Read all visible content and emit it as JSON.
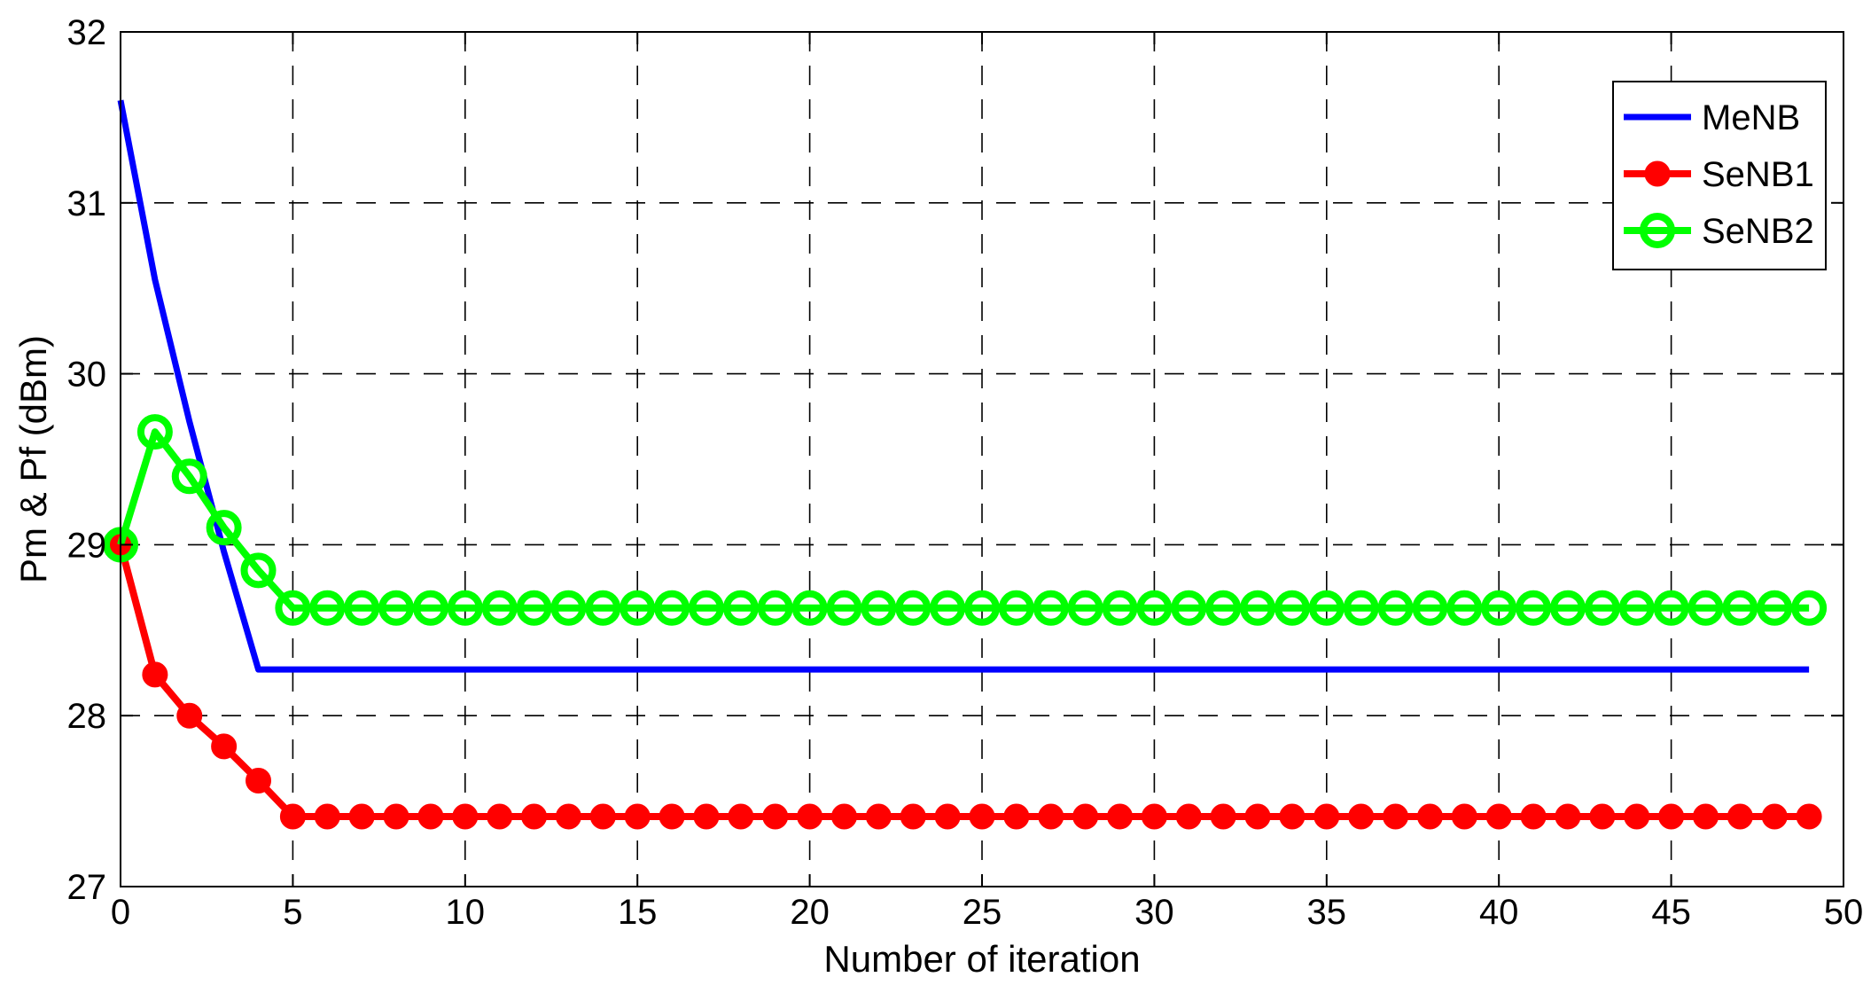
{
  "chart_data": {
    "type": "line",
    "xlabel": "Number of iteration",
    "ylabel": "Pm & Pf (dBm)",
    "xlim": [
      0,
      50
    ],
    "ylim": [
      27,
      32
    ],
    "xticks": [
      0,
      5,
      10,
      15,
      20,
      25,
      30,
      35,
      40,
      45,
      50
    ],
    "yticks": [
      27,
      28,
      29,
      30,
      31,
      32
    ],
    "grid": true,
    "legend_position": "top-right",
    "series": [
      {
        "name": "MeNB",
        "color": "#0000ff",
        "marker": "none",
        "x": [
          0,
          1,
          2,
          3,
          4,
          49
        ],
        "y": [
          31.6,
          30.55,
          29.72,
          28.96,
          28.27,
          28.27
        ]
      },
      {
        "name": "SeNB1",
        "color": "#ff0000",
        "marker": "filled-circle",
        "x": [
          0,
          1,
          2,
          3,
          4,
          5,
          6,
          7,
          8,
          9,
          10,
          11,
          12,
          13,
          14,
          15,
          16,
          17,
          18,
          19,
          20,
          21,
          22,
          23,
          24,
          25,
          26,
          27,
          28,
          29,
          30,
          31,
          32,
          33,
          34,
          35,
          36,
          37,
          38,
          39,
          40,
          41,
          42,
          43,
          44,
          45,
          46,
          47,
          48,
          49
        ],
        "y": [
          29.0,
          28.24,
          28.0,
          27.82,
          27.62,
          27.41,
          27.41,
          27.41,
          27.41,
          27.41,
          27.41,
          27.41,
          27.41,
          27.41,
          27.41,
          27.41,
          27.41,
          27.41,
          27.41,
          27.41,
          27.41,
          27.41,
          27.41,
          27.41,
          27.41,
          27.41,
          27.41,
          27.41,
          27.41,
          27.41,
          27.41,
          27.41,
          27.41,
          27.41,
          27.41,
          27.41,
          27.41,
          27.41,
          27.41,
          27.41,
          27.41,
          27.41,
          27.41,
          27.41,
          27.41,
          27.41,
          27.41,
          27.41,
          27.41,
          27.41
        ]
      },
      {
        "name": "SeNB2",
        "color": "#00ff00",
        "marker": "open-circle",
        "x": [
          0,
          1,
          2,
          3,
          4,
          5,
          6,
          7,
          8,
          9,
          10,
          11,
          12,
          13,
          14,
          15,
          16,
          17,
          18,
          19,
          20,
          21,
          22,
          23,
          24,
          25,
          26,
          27,
          28,
          29,
          30,
          31,
          32,
          33,
          34,
          35,
          36,
          37,
          38,
          39,
          40,
          41,
          42,
          43,
          44,
          45,
          46,
          47,
          48,
          49
        ],
        "y": [
          29.0,
          29.66,
          29.4,
          29.1,
          28.85,
          28.63,
          28.63,
          28.63,
          28.63,
          28.63,
          28.63,
          28.63,
          28.63,
          28.63,
          28.63,
          28.63,
          28.63,
          28.63,
          28.63,
          28.63,
          28.63,
          28.63,
          28.63,
          28.63,
          28.63,
          28.63,
          28.63,
          28.63,
          28.63,
          28.63,
          28.63,
          28.63,
          28.63,
          28.63,
          28.63,
          28.63,
          28.63,
          28.63,
          28.63,
          28.63,
          28.63,
          28.63,
          28.63,
          28.63,
          28.63,
          28.63,
          28.63,
          28.63,
          28.63,
          28.63
        ]
      }
    ]
  }
}
